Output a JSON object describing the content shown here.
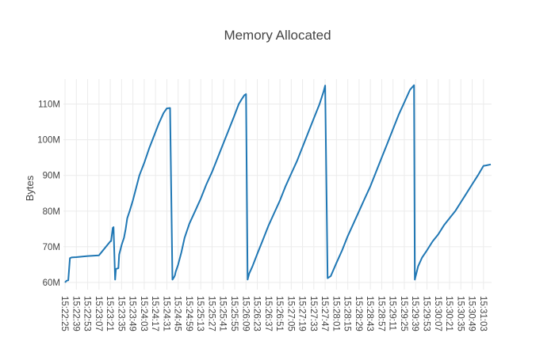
{
  "chart_data": {
    "type": "line",
    "title": "Memory Allocated",
    "xlabel": "",
    "ylabel": "Bytes",
    "line_color": "#1f77b4",
    "grid": true,
    "legend": "none",
    "y_unit_suffix": "M",
    "ylim": [
      58,
      117
    ],
    "y_ticks": [
      60,
      70,
      80,
      90,
      100,
      110
    ],
    "y_tick_labels": [
      "60M",
      "70M",
      "80M",
      "90M",
      "100M",
      "110M"
    ],
    "x_tick_labels": [
      "15:22:25",
      "15:22:39",
      "15:22:53",
      "15:23:07",
      "15:23:21",
      "15:23:35",
      "15:23:49",
      "15:24:03",
      "15:24:17",
      "15:24:31",
      "15:24:45",
      "15:24:59",
      "15:25:13",
      "15:25:27",
      "15:25:41",
      "15:25:55",
      "15:26:09",
      "15:26:23",
      "15:26:37",
      "15:26:51",
      "15:27:05",
      "15:27:19",
      "15:27:33",
      "15:27:47",
      "15:28:01",
      "15:28:15",
      "15:28:29",
      "15:28:43",
      "15:28:57",
      "15:29:11",
      "15:29:25",
      "15:29:39",
      "15:29:53",
      "15:30:07",
      "15:30:21",
      "15:30:35",
      "15:30:49",
      "15:31:03"
    ],
    "series": [
      {
        "x": [
          "15:22:25",
          "15:22:27",
          "15:22:29",
          "15:22:31",
          "15:22:33",
          "15:22:39",
          "15:22:53",
          "15:23:07",
          "15:23:21",
          "15:23:22",
          "15:23:24",
          "15:23:25",
          "15:23:27",
          "15:23:28",
          "15:23:31",
          "15:23:32",
          "15:23:35",
          "15:23:38",
          "15:23:40",
          "15:23:42",
          "15:23:45",
          "15:23:49",
          "15:23:53",
          "15:23:57",
          "15:24:03",
          "15:24:09",
          "15:24:15",
          "15:24:21",
          "15:24:27",
          "15:24:31",
          "15:24:35",
          "15:24:38",
          "15:24:40",
          "15:24:41",
          "15:24:42",
          "15:24:45",
          "15:24:49",
          "15:24:53",
          "15:24:59",
          "15:25:06",
          "15:25:13",
          "15:25:20",
          "15:25:27",
          "15:25:34",
          "15:25:41",
          "15:25:48",
          "15:25:55",
          "15:26:00",
          "15:26:04",
          "15:26:07",
          "15:26:09",
          "15:26:11",
          "15:26:13",
          "15:26:17",
          "15:26:23",
          "15:26:30",
          "15:26:37",
          "15:26:44",
          "15:26:51",
          "15:26:58",
          "15:27:05",
          "15:27:12",
          "15:27:19",
          "15:27:26",
          "15:27:33",
          "15:27:40",
          "15:27:45",
          "15:27:47",
          "15:27:50",
          "15:27:54",
          "15:28:01",
          "15:28:08",
          "15:28:15",
          "15:28:22",
          "15:28:29",
          "15:28:36",
          "15:28:43",
          "15:28:50",
          "15:28:57",
          "15:29:04",
          "15:29:11",
          "15:29:18",
          "15:29:25",
          "15:29:32",
          "15:29:37",
          "15:29:38",
          "15:29:42",
          "15:29:47",
          "15:29:53",
          "15:30:00",
          "15:30:07",
          "15:30:14",
          "15:30:21",
          "15:30:28",
          "15:30:35",
          "15:30:42",
          "15:30:49",
          "15:30:56",
          "15:31:03",
          "15:31:06",
          "15:31:12"
        ],
        "y": [
          60.0,
          60.5,
          60.6,
          66.8,
          67.0,
          67.1,
          67.4,
          67.6,
          71.5,
          71.6,
          75.3,
          75.5,
          60.8,
          63.8,
          64.0,
          67.8,
          70.5,
          72.5,
          75.0,
          78.0,
          80.0,
          83.0,
          86.5,
          90.0,
          93.5,
          97.5,
          101.0,
          104.5,
          107.5,
          108.8,
          108.9,
          60.8,
          61.5,
          62.0,
          63.0,
          65.0,
          68.5,
          72.5,
          76.5,
          80.0,
          83.5,
          87.5,
          91.0,
          95.0,
          99.0,
          103.0,
          107.0,
          110.0,
          111.5,
          112.5,
          112.8,
          60.8,
          62.5,
          64.5,
          68.0,
          72.0,
          76.0,
          79.5,
          83.0,
          87.0,
          90.5,
          94.0,
          98.0,
          102.0,
          106.0,
          110.0,
          113.5,
          115.2,
          61.2,
          61.8,
          65.5,
          69.0,
          73.0,
          76.5,
          80.0,
          83.5,
          87.0,
          91.0,
          95.0,
          99.0,
          103.0,
          107.0,
          110.5,
          114.0,
          115.3,
          60.8,
          64.5,
          67.0,
          69.0,
          71.5,
          73.5,
          76.0,
          78.0,
          80.0,
          82.5,
          85.0,
          87.5,
          90.0,
          92.7,
          92.8,
          93.1
        ]
      }
    ]
  }
}
